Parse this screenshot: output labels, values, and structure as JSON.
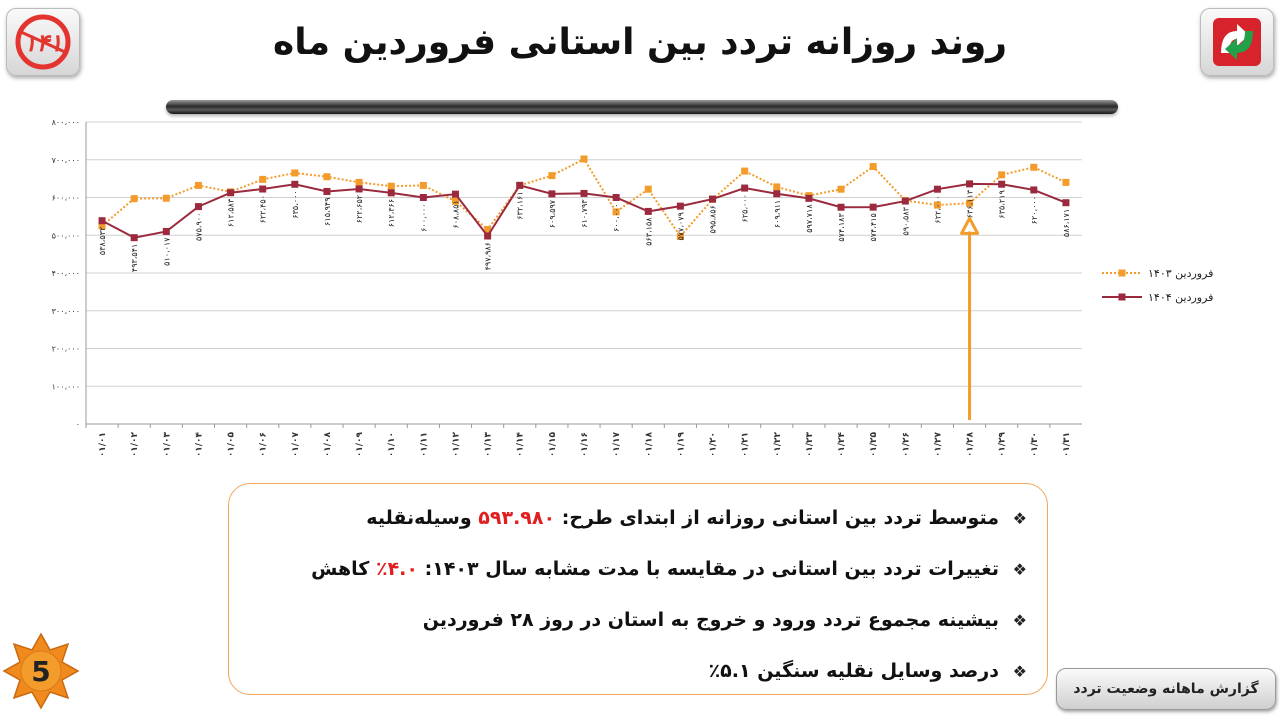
{
  "header": {
    "title": "روند روزانه تردد بین استانی فروردین ماه",
    "logo_left_text": "۱۴۱"
  },
  "chart_data": {
    "type": "line",
    "title": "",
    "xlabel": "",
    "ylabel": "",
    "ylim": [
      0,
      800000
    ],
    "y_ticks": [
      "۰",
      "۱۰۰،۰۰۰",
      "۲۰۰،۰۰۰",
      "۳۰۰،۰۰۰",
      "۴۰۰،۰۰۰",
      "۵۰۰،۰۰۰",
      "۶۰۰،۰۰۰",
      "۷۰۰،۰۰۰",
      "۸۰۰،۰۰۰"
    ],
    "grid": true,
    "legend_position": "right",
    "categories": [
      "۰۱/۰۱",
      "۰۱/۰۲",
      "۰۱/۰۳",
      "۰۱/۰۴",
      "۰۱/۰۵",
      "۰۱/۰۶",
      "۰۱/۰۷",
      "۰۱/۰۸",
      "۰۱/۰۹",
      "۰۱/۱۰",
      "۰۱/۱۱",
      "۰۱/۱۲",
      "۰۱/۱۳",
      "۰۱/۱۴",
      "۰۱/۱۵",
      "۰۱/۱۶",
      "۰۱/۱۷",
      "۰۱/۱۸",
      "۰۱/۱۹",
      "۰۱/۲۰",
      "۰۱/۲۱",
      "۰۱/۲۲",
      "۰۱/۲۳",
      "۰۱/۲۴",
      "۰۱/۲۵",
      "۰۱/۲۶",
      "۰۱/۲۷",
      "۰۱/۲۸",
      "۰۱/۲۹",
      "۰۱/۳۰",
      "۰۱/۳۱"
    ],
    "series": [
      {
        "name": "فروردین ۱۴۰۳",
        "color": "#f39c2c",
        "style": "dotted",
        "marker": "square",
        "values": [
          525000,
          597000,
          598000,
          632000,
          615000,
          648000,
          665000,
          655000,
          640000,
          630000,
          632000,
          590000,
          515000,
          632000,
          658000,
          702000,
          562000,
          622000,
          497000,
          595000,
          670000,
          628000,
          605000,
          622000,
          682000,
          592000,
          580000,
          585000,
          660000,
          680000,
          640000
        ]
      },
      {
        "name": "فروردین ۱۴۰۴",
        "color": "#9b2a3e",
        "style": "solid",
        "marker": "square",
        "values": [
          538532,
          493541,
          510017,
          575900,
          612583,
          622450,
          635000,
          615949,
          622652,
          612366,
          600000,
          608851,
          497986,
          632161,
          609597,
          610793,
          600000,
          563158,
          577079,
          595856,
          625000,
          609911,
          597718,
          574183,
          574415,
          590583,
          622000,
          636113,
          635219,
          620000,
          586171
        ]
      }
    ],
    "data_labels": {
      "series_index": 1,
      "labels": [
        "۵۳۸،۵۳۲",
        "۴۹۳،۵۴۱",
        "۵۱۰،۰۱۷",
        "۵۷۵،۹۰۰",
        "۶۱۲،۵۸۳",
        "۶۲۲،۴۵۰",
        "۶۳۵،۰۰۰",
        "۶۱۵،۹۴۹",
        "۶۲۲،۶۵۲",
        "۶۱۲،۳۶۶",
        "۶۰۰،۰۰۰",
        "۶۰۸،۸۵۱",
        "۴۹۷،۹۸۶",
        "۶۳۲،۱۶۱",
        "۶۰۹،۵۹۷",
        "۶۱۰،۷۹۳",
        "۶۰۰،۰۰۰",
        "۵۶۳،۱۵۸",
        "۵۷۷،۰۷۹",
        "۵۹۵،۸۵۶",
        "۶۲۵،۰۰۰",
        "۶۰۹،۹۱۱",
        "۵۹۷،۷۱۸",
        "۵۷۴،۱۸۳",
        "۵۷۴،۴۱۵",
        "۵۹۰،۵۸۳",
        "۶۲۲،۰۰۰",
        "۶۳۶،۱۱۳",
        "۶۳۵،۲۱۹",
        "۶۲۰،۰۰۰",
        "۵۸۶،۱۷۱"
      ]
    },
    "annotations": [
      {
        "type": "arrow",
        "category": "۰۱/۲۸",
        "color": "#f39c2c",
        "direction": "up"
      }
    ]
  },
  "info_box": {
    "items": [
      {
        "prefix": "متوسط تردد بین استانی روزانه از ابتدای طرح: ",
        "highlight": "۵۹۳.۹۸۰",
        "suffix": " وسیله‌نقلیه"
      },
      {
        "prefix": "تغییرات تردد بین استانی در مقایسه با مدت مشابه سال ۱۴۰۳: ",
        "highlight": "۴.۰٪",
        "suffix": " کاهش"
      },
      {
        "prefix": "بیشینه مجموع تردد ورود و خروج به استان در روز ۲۸ فروردین",
        "highlight": "",
        "suffix": ""
      },
      {
        "prefix": "درصد وسایل نقلیه سنگین ۵.۱٪",
        "highlight": "",
        "suffix": ""
      }
    ],
    "bullet_icon": "diamond-bullet-icon"
  },
  "footer": {
    "page_number": "5",
    "report_label": "گزارش ماهانه وضعیت تردد"
  },
  "colors": {
    "accent_orange": "#f39c2c",
    "accent_red": "#e02020",
    "series_dark_red": "#9b2a3e",
    "badge_orange": "#f08a1c"
  }
}
